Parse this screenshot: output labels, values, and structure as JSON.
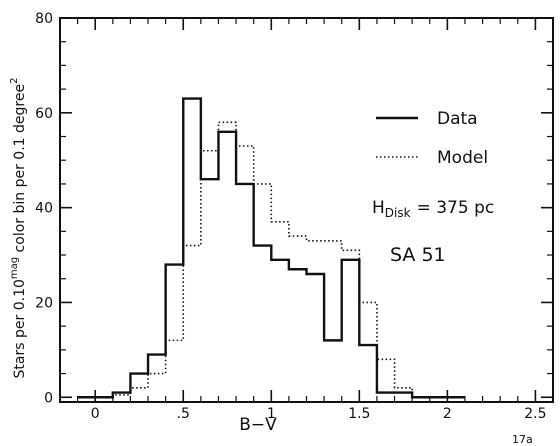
{
  "chart_data": {
    "type": "line",
    "title": "",
    "xlabel": "B−V",
    "ylabel": "Stars per 0.10 mag color bin per 0.1 degree²",
    "ylabel_parts": {
      "a": "Stars per 0.10",
      "sup1": "mag",
      "b": " color bin per 0.1 degree",
      "sup2": "2"
    },
    "xlim": [
      -0.2,
      2.6
    ],
    "ylim": [
      -1,
      80
    ],
    "x_ticks": [
      0,
      0.5,
      1,
      1.5,
      2,
      2.5
    ],
    "x_tick_labels": [
      "0",
      ".5",
      "1",
      "1.5",
      "2",
      "2.5"
    ],
    "y_ticks": [
      0,
      20,
      40,
      60,
      80
    ],
    "y_tick_labels": [
      "0",
      "20",
      "40",
      "60",
      "80"
    ],
    "grid": false,
    "legend_position": "right",
    "series": [
      {
        "name": "Data",
        "style": "solid",
        "bin_edges": [
          -0.1,
          0.1,
          0.2,
          0.3,
          0.4,
          0.5,
          0.6,
          0.7,
          0.8,
          0.9,
          1.0,
          1.1,
          1.2,
          1.3,
          1.4,
          1.5,
          1.6,
          1.7,
          1.8,
          2.1
        ],
        "values": [
          0,
          1,
          5,
          9,
          28,
          63,
          46,
          56,
          45,
          32,
          29,
          27,
          26,
          12,
          29,
          11,
          1,
          1,
          0
        ]
      },
      {
        "name": "Model",
        "style": "dotted",
        "bin_edges": [
          -0.1,
          0.1,
          0.2,
          0.3,
          0.4,
          0.5,
          0.6,
          0.7,
          0.8,
          0.9,
          1.0,
          1.1,
          1.2,
          1.3,
          1.4,
          1.5,
          1.6,
          1.7,
          1.8,
          2.1
        ],
        "values": [
          0,
          0.5,
          2,
          5,
          12,
          32,
          52,
          58,
          53,
          45,
          37,
          34,
          33,
          33,
          31,
          20,
          8,
          2,
          0
        ]
      }
    ],
    "annotations": {
      "hdisk_main": "H",
      "hdisk_sub": "Disk",
      "hdisk_value": "= 375 pc",
      "field": "SA  51",
      "corner_mark": "17a"
    }
  }
}
